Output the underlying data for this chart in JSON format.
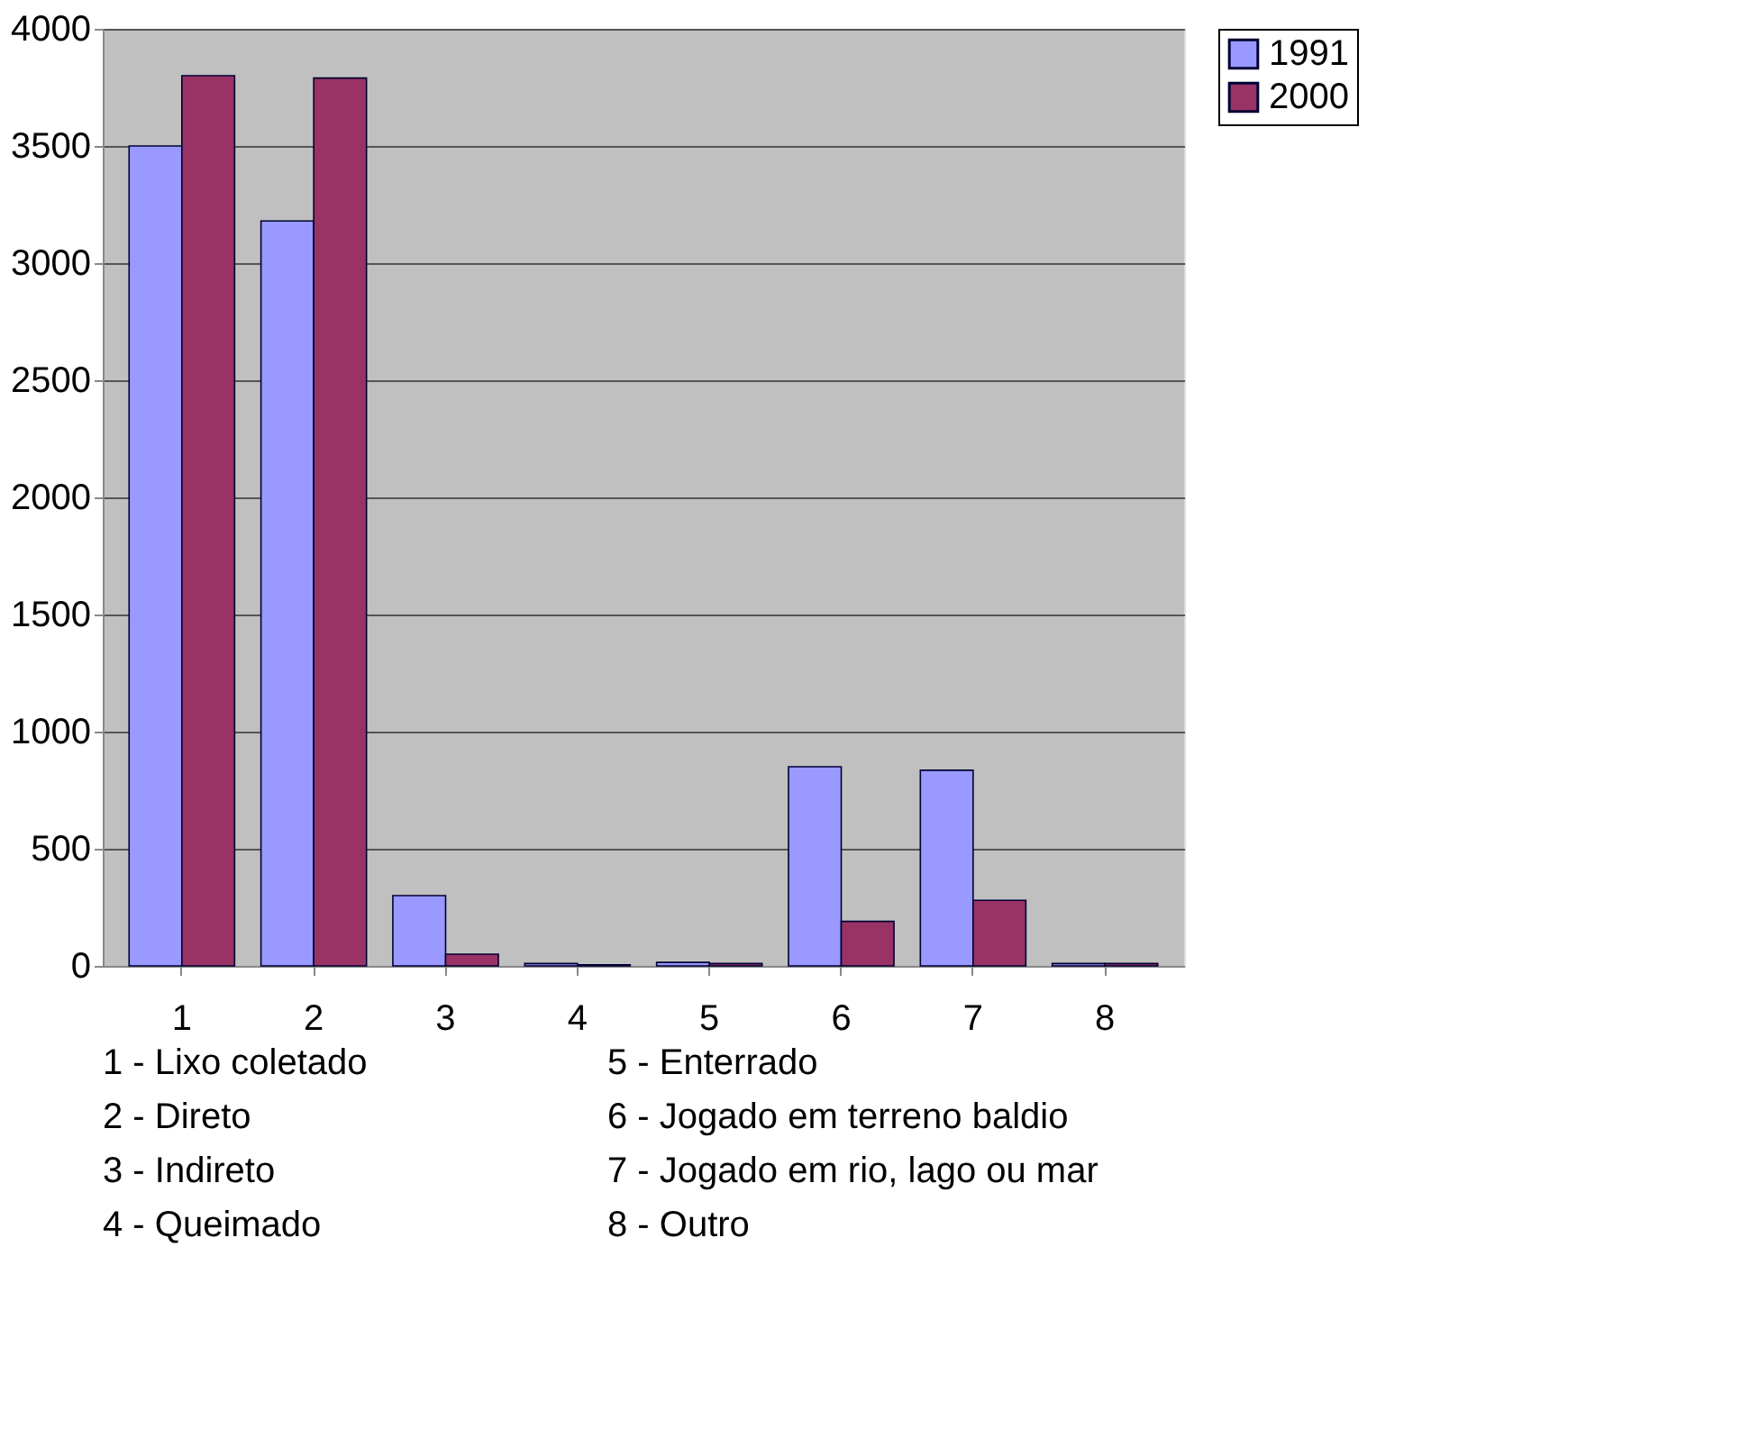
{
  "chart_data": {
    "type": "bar",
    "categories": [
      "1",
      "2",
      "3",
      "4",
      "5",
      "6",
      "7",
      "8"
    ],
    "series": [
      {
        "name": "1991",
        "color": "#9999ff",
        "values": [
          3500,
          3180,
          300,
          10,
          15,
          850,
          835,
          10
        ]
      },
      {
        "name": "2000",
        "color": "#993366",
        "values": [
          3800,
          3790,
          50,
          5,
          10,
          190,
          280,
          10
        ]
      }
    ],
    "ylim": [
      0,
      4000
    ],
    "yticks": [
      0,
      500,
      1000,
      1500,
      2000,
      2500,
      3000,
      3500,
      4000
    ],
    "grid": "y",
    "legend": "right",
    "annotations": [
      "1 - Lixo coletado",
      "2 - Direto",
      "3 - Indireto",
      "4 - Queimado",
      "5 - Enterrado",
      "6 - Jogado em terreno baldio",
      "7 - Jogado em rio, lago ou mar",
      "8 - Outro"
    ]
  }
}
